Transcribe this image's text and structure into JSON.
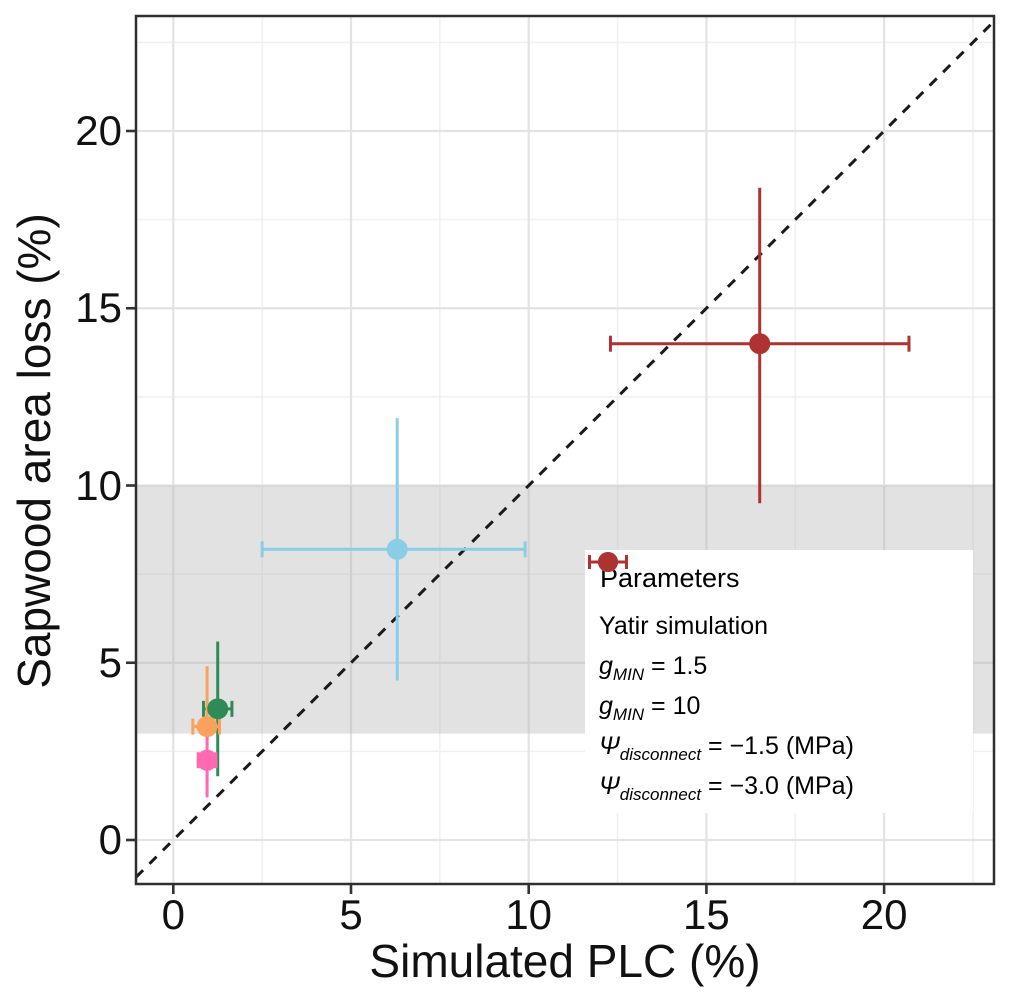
{
  "figure_type": "scatter plot with error bars",
  "legend": {
    "title": "Parameters",
    "items": [
      {
        "var": "",
        "sub": "",
        "rest": "Yatir simulation"
      },
      {
        "var": "g",
        "sub": "MIN",
        "rest": " = 1.5"
      },
      {
        "var": "g",
        "sub": "MIN",
        "rest": " = 10"
      },
      {
        "var": "Ψ",
        "sub": "disconnect",
        "rest": " = −1.5 (MPa)"
      },
      {
        "var": "Ψ",
        "sub": "disconnect",
        "rest": " = −3.0 (MPa)"
      }
    ]
  },
  "chart_data": {
    "type": "scatter",
    "title": "",
    "xlabel": "Simulated PLC (%)",
    "ylabel": "Sapwood area loss (%)",
    "xlim": [
      -1.1,
      23.1
    ],
    "ylim": [
      -1.2,
      23.2
    ],
    "x_ticks": [
      0,
      5,
      10,
      15,
      20
    ],
    "y_ticks": [
      0,
      5,
      10,
      15,
      20
    ],
    "minor_gridlines": [
      2.5,
      7.5,
      12.5,
      17.5,
      22.5
    ],
    "grid": true,
    "legend_position": "inside bottom-right",
    "identity_line": {
      "style": "dashed",
      "slope": 1,
      "intercept": 0,
      "color": "#1a1a1a"
    },
    "shaded_band": {
      "axis": "y",
      "from": 3,
      "to": 10,
      "color": "#b4b4b4",
      "opacity": 0.38
    },
    "series": [
      {
        "name": "Yatir simulation",
        "color": "#2E8B57",
        "x": 1.25,
        "y": 3.7,
        "x_err": [
          0.85,
          1.65
        ],
        "y_err": [
          1.8,
          5.6
        ]
      },
      {
        "name": "gMIN = 1.5",
        "color": "#F8A25B",
        "x": 0.95,
        "y": 3.2,
        "x_err": [
          0.55,
          1.3
        ],
        "y_err": [
          1.5,
          4.9
        ]
      },
      {
        "name": "gMIN = 10",
        "color": "#89CDE6",
        "x": 6.3,
        "y": 8.2,
        "x_err": [
          2.5,
          9.9
        ],
        "y_err": [
          4.5,
          11.9
        ]
      },
      {
        "name": "Ψdisconnect = −1.5 (MPa)",
        "color": "#FF69B4",
        "x": 0.95,
        "y": 2.25,
        "x_err": [
          0.7,
          1.2
        ],
        "y_err": [
          1.2,
          3.3
        ]
      },
      {
        "name": "Ψdisconnect = −3.0 (MPa)",
        "color": "#AE3232",
        "x": 16.5,
        "y": 14.0,
        "x_err": [
          12.3,
          20.7
        ],
        "y_err": [
          9.5,
          18.4
        ]
      }
    ]
  }
}
